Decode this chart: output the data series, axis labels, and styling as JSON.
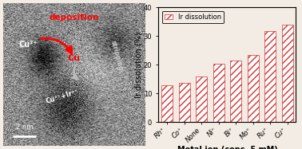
{
  "categories": [
    "Rh⁺",
    "Co⁺",
    "None",
    "Ni⁺",
    "Bi⁺",
    "Mo⁺",
    "Ru⁺",
    "Cu⁺"
  ],
  "values": [
    12.8,
    13.7,
    16.0,
    20.5,
    21.5,
    23.3,
    31.7,
    34.0
  ],
  "bar_facecolor": "#ffffff",
  "bar_edgecolor": "#d43030",
  "background_color": "#f2ece4",
  "ylabel": "Ir dissolution (%)",
  "xlabel": "Metal ion (conc. 5 mM)",
  "ylim": [
    0,
    40
  ],
  "yticks": [
    0,
    10,
    20,
    30,
    40
  ],
  "legend_label": "Ir dissolution",
  "tick_fontsize": 6,
  "label_fontsize": 7,
  "legend_fontsize": 6
}
